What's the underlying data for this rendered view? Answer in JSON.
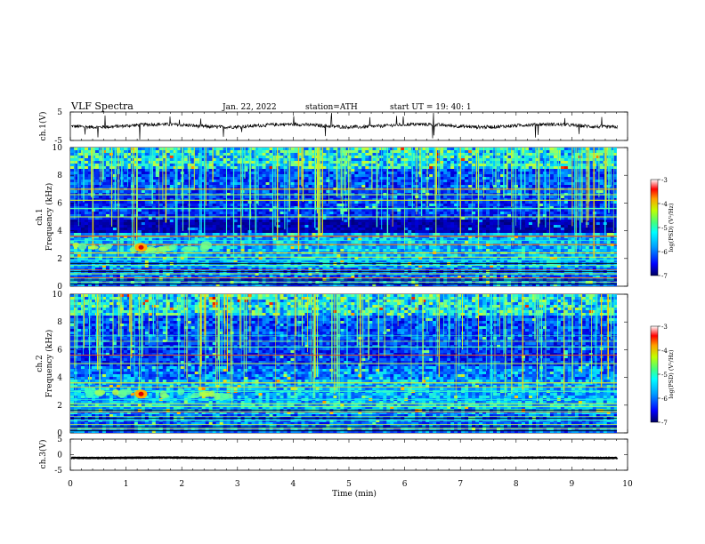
{
  "header": {
    "title": "VLF  Spectra",
    "date": "Jan. 22, 2022",
    "station": "station=ATH",
    "start": "start  UT  =    19: 40: 1"
  },
  "chart_data": [
    {
      "type": "line",
      "panel": "ch1-waveform",
      "ylabel": "ch.1(V)",
      "ylim": [
        -5,
        5
      ],
      "yticks": [
        "5",
        "-5"
      ],
      "baseline": 0.2
    },
    {
      "type": "heatmap",
      "panel": "ch1-spectrogram",
      "ylabel": "ch.1\nFrequency  (kHz)",
      "ylim": [
        0,
        10
      ],
      "yticks": [
        "0",
        "2",
        "4",
        "6",
        "8",
        "10"
      ],
      "colorbar": {
        "label": "log(PSD) (V²/Hz)",
        "range": [
          -7,
          -3
        ],
        "ticks": [
          "-3",
          "-4",
          "-5",
          "-6",
          "-7"
        ]
      },
      "noise_band_khz": [
        3.8,
        4.8
      ],
      "burst_khz": 2.8,
      "burst_time_min": 1.27
    },
    {
      "type": "heatmap",
      "panel": "ch2-spectrogram",
      "ylabel": "ch.2\nFrequency  (kHz)",
      "ylim": [
        0,
        10
      ],
      "yticks": [
        "0",
        "2",
        "4",
        "6",
        "8",
        "10"
      ],
      "colorbar": {
        "label": "log(PSD) (V²/Hz)",
        "range": [
          -7,
          -3
        ],
        "ticks": [
          "-3",
          "-4",
          "-5",
          "-6",
          "-7"
        ]
      },
      "burst_khz": 2.8,
      "burst_time_min": 1.27
    },
    {
      "type": "line",
      "panel": "ch3-waveform",
      "ylabel": "ch.3(V)",
      "ylim": [
        -5,
        5
      ],
      "yticks": [
        "5",
        "0",
        "-5"
      ],
      "baseline": -1.0
    }
  ],
  "xaxis": {
    "label": "Time  (min)",
    "xlim": [
      0,
      10
    ],
    "ticks": [
      "0",
      "1",
      "2",
      "3",
      "4",
      "5",
      "6",
      "7",
      "8",
      "9",
      "10"
    ],
    "data_end_min": 9.82
  },
  "colors": {
    "colormap": [
      "#00007f",
      "#0000e0",
      "#0060ff",
      "#00c8ff",
      "#40ffbf",
      "#bfff40",
      "#ffc800",
      "#ff4000",
      "#c00000"
    ],
    "axis": "#000000"
  }
}
